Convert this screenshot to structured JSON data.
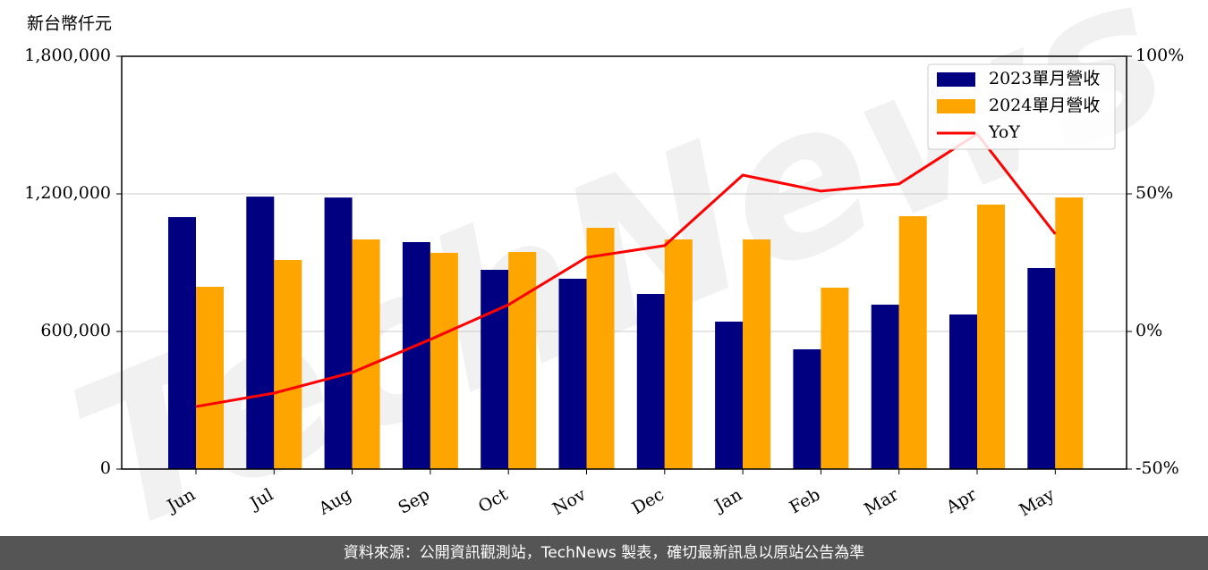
{
  "chart_data": {
    "type": "bar_line",
    "y_label": "新台幣仟元",
    "watermark": "TechNews",
    "categories": [
      "Jun",
      "Jul",
      "Aug",
      "Sep",
      "Oct",
      "Nov",
      "Dec",
      "Jan",
      "Feb",
      "Mar",
      "Apr",
      "May"
    ],
    "series": [
      {
        "name": "2023單月營收",
        "type": "bar",
        "color": "#000080",
        "values": [
          1098700,
          1188000,
          1184000,
          989600,
          868800,
          829900,
          763600,
          642900,
          522100,
          716900,
          674000,
          876600
        ]
      },
      {
        "name": "2024單月營收",
        "type": "bar",
        "color": "#ffa500",
        "values": [
          794800,
          911700,
          1001300,
          942800,
          946700,
          1051900,
          1001300,
          1001300,
          790900,
          1102600,
          1153200,
          1184400
        ]
      },
      {
        "name": "YoY",
        "type": "line",
        "axis": "y2",
        "color": "#ff0000",
        "values": [
          -27.3,
          -22.4,
          -14.9,
          -2.9,
          9.7,
          26.9,
          31.2,
          56.8,
          51.0,
          53.6,
          71.8,
          35.4
        ]
      }
    ],
    "ylim": [
      0,
      1800000
    ],
    "yticks": [
      0,
      {
        "value": 600000,
        "label": "600,000"
      },
      {
        "value": 1200000,
        "label": "1,200,000"
      },
      {
        "value": 1800000,
        "label": "1,800,000"
      }
    ],
    "y2lim": [
      -50,
      100
    ],
    "y2ticks": [
      {
        "value": -50,
        "label": "-50%"
      },
      {
        "value": 0,
        "label": "0%"
      },
      {
        "value": 50,
        "label": "50%"
      },
      {
        "value": 100,
        "label": "100%"
      }
    ],
    "grid": true,
    "legend": "upper right"
  },
  "footer": {
    "source": "資料來源：公開資訊觀測站，TechNews 製表，確切最新訊息以原站公告為準"
  }
}
